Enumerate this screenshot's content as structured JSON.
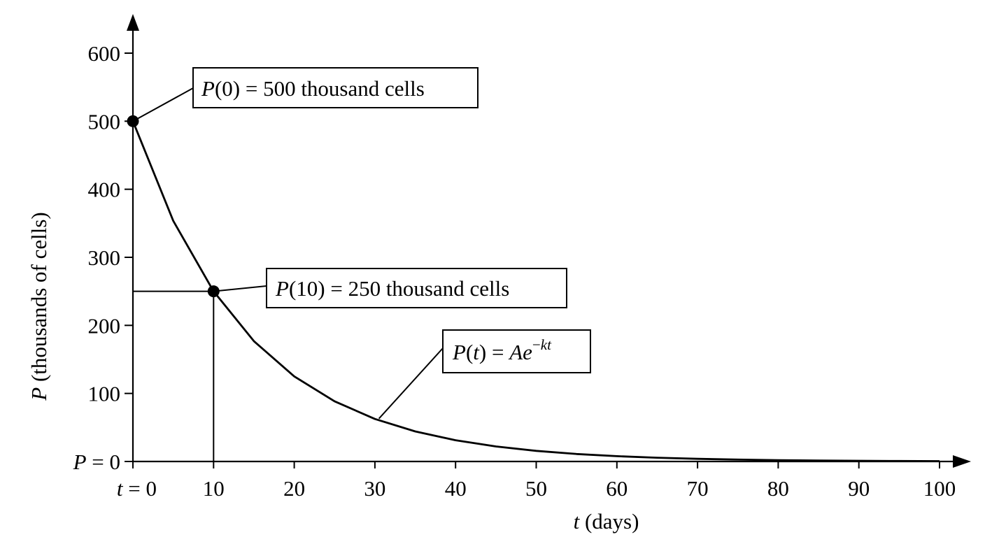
{
  "chart_data": {
    "type": "line",
    "title": "",
    "xlabel": {
      "var": "t",
      "rest": " (days)"
    },
    "ylabel": {
      "var": "P",
      "rest": " (thousands of cells)"
    },
    "xlim": [
      0,
      100
    ],
    "ylim": [
      0,
      600
    ],
    "x_ticks": [
      {
        "value": 0,
        "label_var": "t",
        "label_rest": " = 0"
      },
      {
        "value": 10,
        "label": "10"
      },
      {
        "value": 20,
        "label": "20"
      },
      {
        "value": 30,
        "label": "30"
      },
      {
        "value": 40,
        "label": "40"
      },
      {
        "value": 50,
        "label": "50"
      },
      {
        "value": 60,
        "label": "60"
      },
      {
        "value": 70,
        "label": "70"
      },
      {
        "value": 80,
        "label": "80"
      },
      {
        "value": 90,
        "label": "90"
      },
      {
        "value": 100,
        "label": "100"
      }
    ],
    "y_ticks": [
      {
        "value": 0,
        "label_var": "P",
        "label_rest": " = 0"
      },
      {
        "value": 100,
        "label": "100"
      },
      {
        "value": 200,
        "label": "200"
      },
      {
        "value": 300,
        "label": "300"
      },
      {
        "value": 400,
        "label": "400"
      },
      {
        "value": 500,
        "label": "500"
      },
      {
        "value": 600,
        "label": "600"
      }
    ],
    "grid": false,
    "series": [
      {
        "x": [
          0,
          5,
          10,
          15,
          20,
          25,
          30,
          35,
          40,
          45,
          50,
          55,
          60,
          65,
          70,
          75,
          80,
          85,
          90,
          95,
          100
        ],
        "y": [
          500,
          353.6,
          250,
          176.8,
          125,
          88.4,
          62.5,
          44.2,
          31.25,
          22.1,
          15.6,
          11.0,
          7.8,
          5.5,
          3.9,
          2.8,
          1.95,
          1.38,
          0.98,
          0.69,
          0.49
        ]
      }
    ],
    "points": [
      {
        "x": 0,
        "y": 500
      },
      {
        "x": 10,
        "y": 250
      }
    ],
    "annotations": [
      {
        "id": "p0",
        "parts": [
          {
            "t": "P",
            "i": true
          },
          {
            "t": "(0) = 500 thousand cells"
          }
        ]
      },
      {
        "id": "p10",
        "parts": [
          {
            "t": "P",
            "i": true
          },
          {
            "t": "(10) = 250 thousand cells"
          }
        ]
      },
      {
        "id": "formula",
        "parts": [
          {
            "t": "P",
            "i": true
          },
          {
            "t": "("
          },
          {
            "t": "t",
            "i": true
          },
          {
            "t": ") = "
          },
          {
            "t": "Ae",
            "i": true
          },
          {
            "t": "−",
            "sup": true
          },
          {
            "t": "kt",
            "i": true,
            "sup": true
          }
        ]
      }
    ]
  }
}
